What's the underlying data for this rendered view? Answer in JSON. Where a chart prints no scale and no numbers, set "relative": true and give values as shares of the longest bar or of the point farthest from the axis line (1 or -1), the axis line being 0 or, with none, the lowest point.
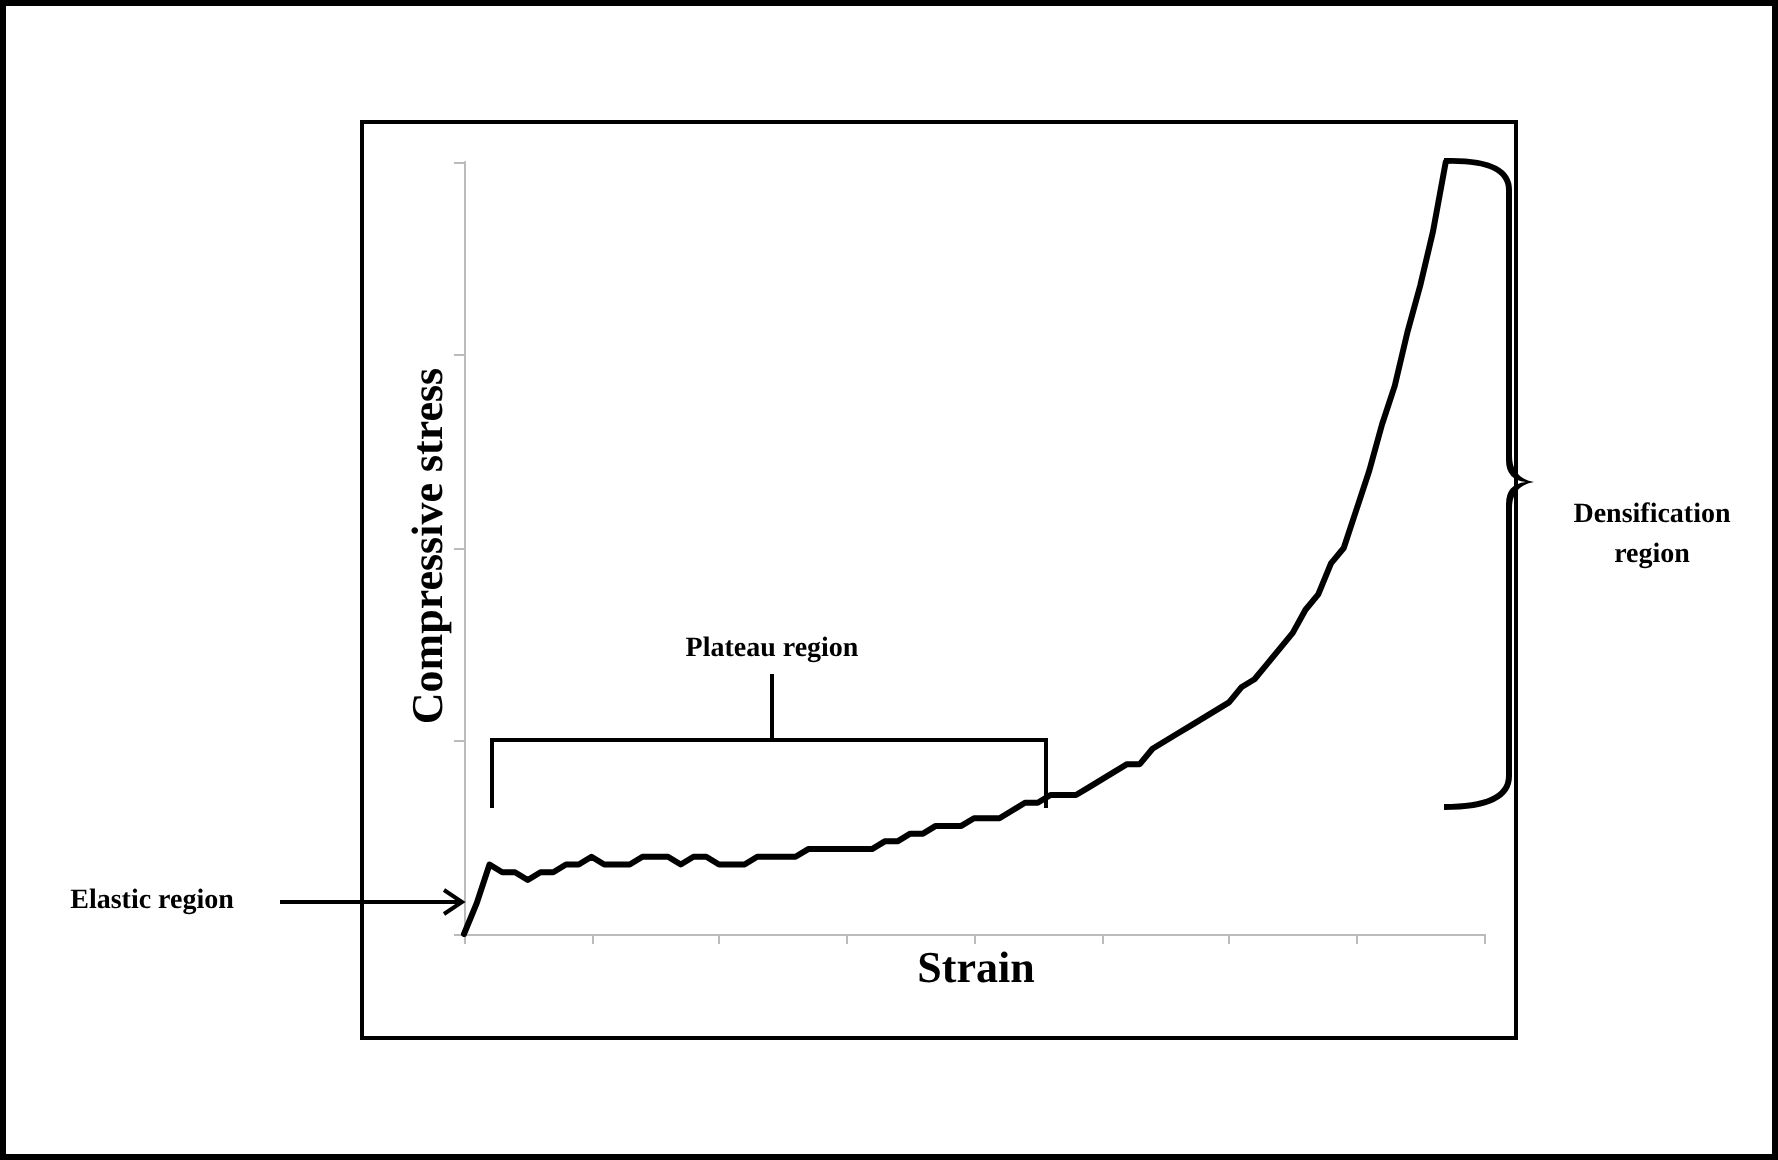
{
  "chart_data": {
    "type": "line",
    "xlabel": "Strain",
    "ylabel": "Compressive stress",
    "relative": true,
    "grid": false,
    "line_style": "solid",
    "categories": [
      null,
      null,
      null,
      null,
      null,
      null,
      null,
      null,
      null,
      null,
      null,
      null,
      null,
      null,
      null,
      null,
      null,
      null,
      null,
      null,
      null,
      null,
      null,
      null,
      null,
      null,
      null,
      null,
      null,
      null,
      null,
      null,
      null,
      null,
      null,
      null,
      null,
      null,
      null,
      null,
      null,
      null,
      null,
      null,
      null,
      null,
      null,
      null,
      null,
      null,
      null,
      null,
      null,
      null,
      null,
      null,
      null,
      null,
      null,
      null,
      null,
      null,
      null,
      null,
      null,
      null,
      null,
      null,
      null,
      null,
      null,
      null,
      null,
      null,
      null,
      null,
      null,
      null,
      null,
      null,
      null
    ],
    "series": [
      {
        "color": "#000000",
        "values": [
          0,
          0.04,
          0.09,
          0.08,
          0.08,
          0.07,
          0.08,
          0.08,
          0.09,
          0.09,
          0.1,
          0.09,
          0.09,
          0.09,
          0.1,
          0.1,
          0.1,
          0.09,
          0.1,
          0.1,
          0.09,
          0.09,
          0.09,
          0.1,
          0.1,
          0.1,
          0.1,
          0.11,
          0.11,
          0.11,
          0.11,
          0.11,
          0.11,
          0.12,
          0.12,
          0.13,
          0.13,
          0.14,
          0.14,
          0.14,
          0.15,
          0.15,
          0.15,
          0.16,
          0.17,
          0.17,
          0.18,
          0.18,
          0.18,
          0.19,
          0.2,
          0.21,
          0.22,
          0.22,
          0.24,
          0.25,
          0.26,
          0.27,
          0.28,
          0.29,
          0.3,
          0.32,
          0.33,
          0.35,
          0.37,
          0.39,
          0.42,
          0.44,
          0.48,
          0.5,
          0.55,
          0.6,
          0.66,
          0.71,
          0.78,
          0.84,
          0.91,
          1.0,
          null,
          null,
          null
        ]
      }
    ],
    "annotations": [
      "Elastic region",
      "Plateau region",
      "Densification region"
    ]
  }
}
